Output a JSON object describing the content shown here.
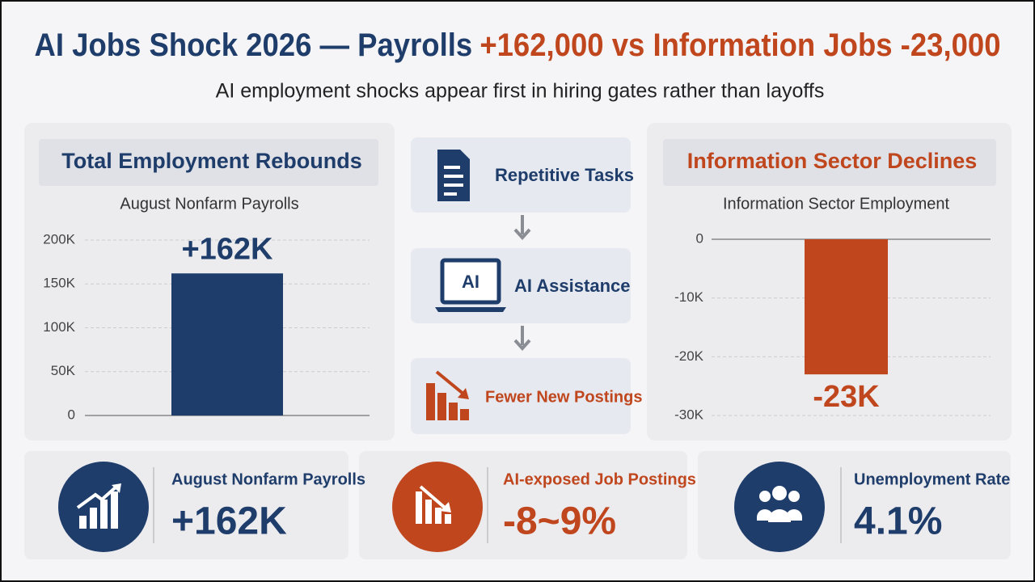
{
  "header": {
    "title": "AI Jobs Shock 2026 — Payrolls",
    "title_highlight": "+162,000 vs Information Jobs -23,000",
    "subtitle": "AI employment shocks appear first in hiring gates rather than layoffs"
  },
  "panels": [
    {
      "heading": "Total Employment Rebounds"
    },
    {
      "heading": "Information Sector Declines"
    }
  ],
  "chart_data": [
    {
      "type": "bar",
      "title": "August Nonfarm Payrolls",
      "categories": [
        null
      ],
      "values": [
        162000
      ],
      "value_labels": [
        "+162K"
      ],
      "color": "#1f3d6b",
      "ylim": [
        0,
        200000
      ],
      "yticks": [
        0,
        {
          "value": 50000,
          "label": "50K"
        },
        {
          "value": 100000,
          "label": "100K"
        },
        {
          "value": 150000,
          "label": "150K"
        },
        {
          "value": 200000,
          "label": "200K"
        }
      ],
      "grid": true
    },
    {
      "type": "bar",
      "title": "Information Sector Employment",
      "categories": [
        null
      ],
      "values": [
        -23000
      ],
      "value_labels": [
        "-23K"
      ],
      "color": "#c0461d",
      "ylim": [
        -30000,
        0
      ],
      "yticks": [
        {
          "value": -30000,
          "label": "-30K"
        },
        {
          "value": -20000,
          "label": "-20K"
        },
        {
          "value": -10000,
          "label": "-10K"
        },
        0
      ],
      "grid": true
    }
  ],
  "flow": {
    "steps": [
      {
        "label": "Repetitive Tasks"
      },
      {
        "label": "AI Assistance",
        "icon_text": "AI"
      },
      {
        "label": "Fewer New Postings"
      }
    ]
  },
  "stats": [
    {
      "label": "August Nonfarm Payrolls",
      "value": "+162K"
    },
    {
      "label": "AI-exposed Job Postings",
      "value": "-8~9%"
    },
    {
      "label": "Unemployment Rate",
      "value": "4.1%"
    }
  ]
}
